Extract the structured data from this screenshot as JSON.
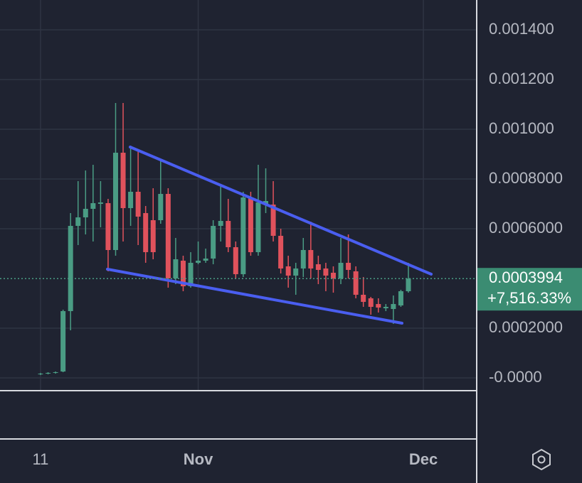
{
  "chart_data": {
    "type": "candlestick",
    "x": [
      0,
      1,
      2,
      3,
      4,
      5,
      6,
      7,
      8,
      9,
      10,
      11,
      12,
      13,
      14,
      15,
      16,
      17,
      18,
      19,
      20,
      21,
      22,
      23,
      24,
      25,
      26,
      27,
      28,
      29,
      30,
      31,
      32,
      33,
      34,
      35,
      36,
      37,
      38,
      39,
      40,
      41,
      42,
      43,
      44,
      45,
      46,
      47,
      48,
      49
    ],
    "open": [
      1.43e-05,
      1.71e-05,
      2e-05,
      2.57e-05,
      0.0002686,
      0.0006114,
      0.0006457,
      0.00068,
      0.0007,
      0.0007029,
      0.0005143,
      0.0009057,
      0.0006829,
      0.0007486,
      0.0006629,
      0.0006343,
      0.0006343,
      0.00074,
      0.0004,
      0.0004714,
      0.0003686,
      0.0004629,
      0.0004714,
      0.00048,
      0.0006114,
      0.0006314,
      0.0005257,
      0.0004171,
      0.0007257,
      0.0005057,
      0.0007,
      0.0006971,
      0.0005714,
      0.0004486,
      0.0004114,
      0.00044,
      0.0005143,
      0.0004571,
      0.00044,
      0.0004229,
      0.0004,
      0.0004629,
      0.0004286,
      0.0003343,
      0.00032,
      0.0002971,
      0.00028,
      0.0002771,
      0.0002914,
      0.0003486
    ],
    "high": [
      2e-05,
      2.29e-05,
      2.57e-05,
      0.0002743,
      0.0006629,
      0.0007914,
      0.0008343,
      0.0008571,
      0.0007914,
      0.00072,
      0.0011057,
      0.0011057,
      0.0009343,
      0.00092,
      0.0006914,
      0.0007629,
      0.0008771,
      0.0007629,
      0.0005629,
      0.0004914,
      0.0005057,
      0.0005486,
      0.00052,
      0.0006343,
      0.0007771,
      0.00072,
      0.0005486,
      0.0007486,
      0.0007486,
      0.0008571,
      0.0008429,
      0.0007914,
      0.0006,
      0.0004914,
      0.0004629,
      0.0005629,
      0.0006286,
      0.0004914,
      0.0004629,
      0.0004486,
      0.0005629,
      0.0005771,
      0.0004486,
      0.0004057,
      0.0003257,
      0.00032,
      0.0002971,
      0.0003314,
      0.0003543,
      0.0004629
    ],
    "low": [
      1.14e-05,
      1.43e-05,
      1.71e-05,
      2.29e-05,
      0.0001914,
      0.0005343,
      0.0005771,
      0.0005486,
      0.0006057,
      0.0004286,
      0.0004914,
      0.0005486,
      0.0006114,
      0.0005343,
      0.0004629,
      0.0004771,
      0.00062,
      0.0003629,
      0.0003771,
      0.0003486,
      0.0003629,
      0.0004571,
      0.0004629,
      0.0004571,
      0.0005486,
      0.0005057,
      0.0004,
      0.0004057,
      0.0004914,
      0.0004914,
      0.0006629,
      0.0005486,
      0.00042,
      0.0003629,
      0.0003343,
      0.0004057,
      0.0004,
      0.0003771,
      0.0003486,
      0.0003429,
      0.0003771,
      0.0004,
      0.00032,
      0.0002857,
      0.0002543,
      0.0002629,
      0.0002686,
      0.0002171,
      0.0002857,
      0.0003429
    ],
    "close": [
      1.71e-05,
      2e-05,
      2.29e-05,
      0.0002686,
      0.0006114,
      0.0006457,
      0.00068,
      0.0007029,
      0.0007057,
      0.0005143,
      0.0009057,
      0.0006829,
      0.0007486,
      0.0006486,
      0.0005057,
      0.0005057,
      0.00074,
      0.0004,
      0.0004771,
      0.0003686,
      0.0004629,
      0.0004714,
      0.00048,
      0.0006114,
      0.0006314,
      0.0005257,
      0.0004171,
      0.0007257,
      0.0005057,
      0.0007057,
      0.0007114,
      0.0005714,
      0.00044,
      0.0004114,
      0.00044,
      0.0005143,
      0.00044,
      0.0004343,
      0.0004114,
      0.0004,
      0.0004629,
      0.0004343,
      0.0003343,
      0.0003057,
      0.0002857,
      0.0002829,
      0.0002857,
      0.0002971,
      0.0003486,
      0.0003994
    ],
    "up_color": "#4a9c84",
    "down_color": "#e0525c",
    "xlim": [
      -5.4,
      58.1
    ],
    "xticks": [
      {
        "value": 0,
        "label": "11"
      },
      {
        "value": 21,
        "label": "Nov"
      },
      {
        "value": 51,
        "label": "Dec"
      }
    ],
    "ylim": [
      -5.14e-05,
      0.00152
    ],
    "yticks": [
      {
        "value": 0.0014,
        "label": "0.001400"
      },
      {
        "value": 0.0012,
        "label": "0.001200"
      },
      {
        "value": 0.001,
        "label": "0.001000"
      },
      {
        "value": 0.0008,
        "label": "0.0008000"
      },
      {
        "value": 0.0006,
        "label": "0.0006000"
      },
      {
        "value": 0.0002,
        "label": "0.0002000"
      },
      {
        "value": 0,
        "label": "-0.0000"
      }
    ],
    "grid": true,
    "last_price": {
      "value": 0.0003994,
      "label": "0.0003994"
    },
    "change_label": "+7,516.33%",
    "trendlines": [
      {
        "x": [
          11.94,
          52.04
        ],
        "y": [
          0.0009286,
          0.0004171
        ],
        "color": "#4a5ef0"
      },
      {
        "x": [
          8.91,
          48.15
        ],
        "y": [
          0.0004371,
          0.00022
        ],
        "color": "#4a5ef0"
      }
    ]
  }
}
